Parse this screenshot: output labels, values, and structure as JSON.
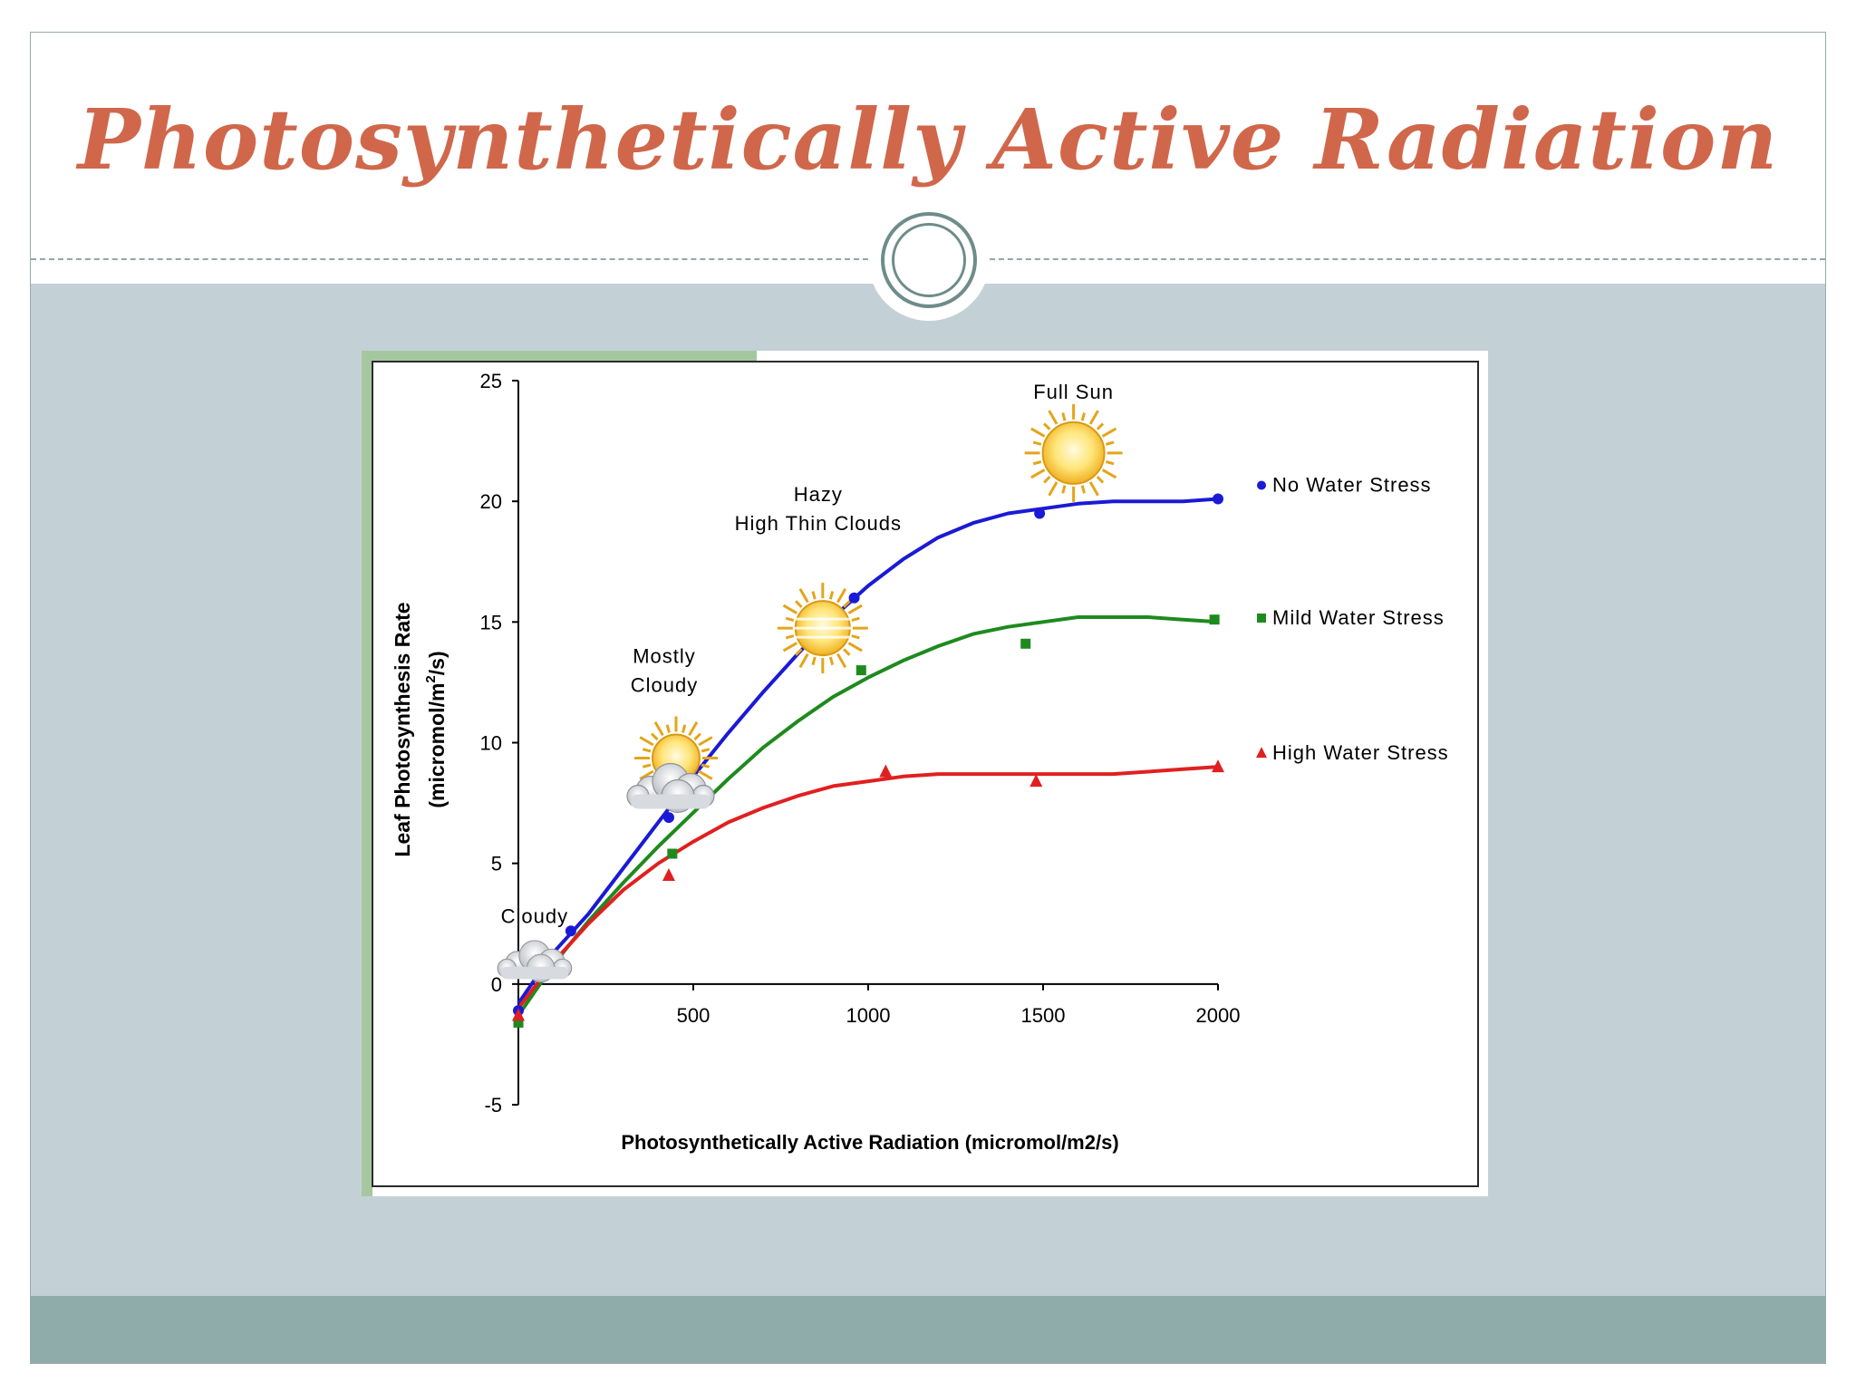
{
  "slide": {
    "title": "Photosynthetically Active Radiation"
  },
  "chart_data": {
    "type": "scatter",
    "title": "",
    "xlabel": "Photosynthetically Active Radiation (micromol/m2/s)",
    "ylabel_line1": "Leaf Photosynthesis Rate",
    "ylabel_line2": "(micromol/m",
    "ylabel_sup": "2",
    "ylabel_line2_end": "/s)",
    "xlim": [
      0,
      2000
    ],
    "ylim": [
      -5,
      25
    ],
    "xticks": [
      "500",
      "1000",
      "1500",
      "2000"
    ],
    "xtick_values": [
      500,
      1000,
      1500,
      2000
    ],
    "yticks": [
      "25",
      "20",
      "15",
      "10",
      "5",
      "0",
      "-5"
    ],
    "ytick_values": [
      25,
      20,
      15,
      10,
      5,
      0,
      -5
    ],
    "grid": false,
    "legend_position": "right",
    "series": [
      {
        "name": "No Water Stress",
        "marker": "circle",
        "color": "#1a1ad6",
        "points": [
          [
            0,
            -1.1
          ],
          [
            150,
            2.2
          ],
          [
            430,
            6.9
          ],
          [
            960,
            16.0
          ],
          [
            1490,
            19.5
          ],
          [
            2000,
            20.1
          ]
        ],
        "curve": [
          [
            0,
            -0.8
          ],
          [
            100,
            1.3
          ],
          [
            200,
            2.9
          ],
          [
            300,
            4.8
          ],
          [
            400,
            6.7
          ],
          [
            500,
            8.6
          ],
          [
            600,
            10.4
          ],
          [
            700,
            12.1
          ],
          [
            800,
            13.7
          ],
          [
            900,
            15.2
          ],
          [
            1000,
            16.5
          ],
          [
            1100,
            17.6
          ],
          [
            1200,
            18.5
          ],
          [
            1300,
            19.1
          ],
          [
            1400,
            19.5
          ],
          [
            1500,
            19.7
          ],
          [
            1600,
            19.9
          ],
          [
            1700,
            20.0
          ],
          [
            1800,
            20.0
          ],
          [
            1900,
            20.0
          ],
          [
            2000,
            20.1
          ]
        ]
      },
      {
        "name": "Mild Water Stress",
        "marker": "square",
        "color": "#1e8a1e",
        "points": [
          [
            0,
            -1.6
          ],
          [
            440,
            5.4
          ],
          [
            980,
            13.0
          ],
          [
            1450,
            14.1
          ],
          [
            1990,
            15.1
          ]
        ],
        "curve": [
          [
            0,
            -1.3
          ],
          [
            100,
            0.8
          ],
          [
            200,
            2.6
          ],
          [
            300,
            4.2
          ],
          [
            400,
            5.7
          ],
          [
            500,
            7.1
          ],
          [
            600,
            8.5
          ],
          [
            700,
            9.8
          ],
          [
            800,
            10.9
          ],
          [
            900,
            11.9
          ],
          [
            1000,
            12.7
          ],
          [
            1100,
            13.4
          ],
          [
            1200,
            14.0
          ],
          [
            1300,
            14.5
          ],
          [
            1400,
            14.8
          ],
          [
            1500,
            15.0
          ],
          [
            1600,
            15.2
          ],
          [
            1700,
            15.2
          ],
          [
            1800,
            15.2
          ],
          [
            1900,
            15.1
          ],
          [
            2000,
            15.0
          ]
        ]
      },
      {
        "name": "High Water Stress",
        "marker": "triangle",
        "color": "#e02020",
        "points": [
          [
            0,
            -1.3
          ],
          [
            430,
            4.5
          ],
          [
            1050,
            8.8
          ],
          [
            1480,
            8.4
          ],
          [
            2000,
            9.0
          ]
        ],
        "curve": [
          [
            0,
            -1.0
          ],
          [
            100,
            0.9
          ],
          [
            200,
            2.5
          ],
          [
            300,
            3.9
          ],
          [
            400,
            5.0
          ],
          [
            500,
            5.9
          ],
          [
            600,
            6.7
          ],
          [
            700,
            7.3
          ],
          [
            800,
            7.8
          ],
          [
            900,
            8.2
          ],
          [
            1000,
            8.4
          ],
          [
            1100,
            8.6
          ],
          [
            1200,
            8.7
          ],
          [
            1300,
            8.7
          ],
          [
            1400,
            8.7
          ],
          [
            1500,
            8.7
          ],
          [
            1600,
            8.7
          ],
          [
            1700,
            8.7
          ],
          [
            1800,
            8.8
          ],
          [
            1900,
            8.9
          ],
          [
            2000,
            9.0
          ]
        ]
      }
    ],
    "annotations": [
      {
        "lines": [
          "Cloudy"
        ],
        "icon": "cloud-icon",
        "x": 150,
        "y": 3.1
      },
      {
        "lines": [
          "Mostly",
          "Cloudy"
        ],
        "icon": "sun-behind-cloud-icon",
        "x": 430,
        "y": 10.3
      },
      {
        "lines": [
          "Hazy",
          "High Thin Clouds"
        ],
        "icon": "hazy-sun-icon",
        "x": 870,
        "y": 17.0
      },
      {
        "lines": [
          "Full Sun"
        ],
        "icon": "sun-icon",
        "x": 1600,
        "y": 22.0
      }
    ]
  }
}
